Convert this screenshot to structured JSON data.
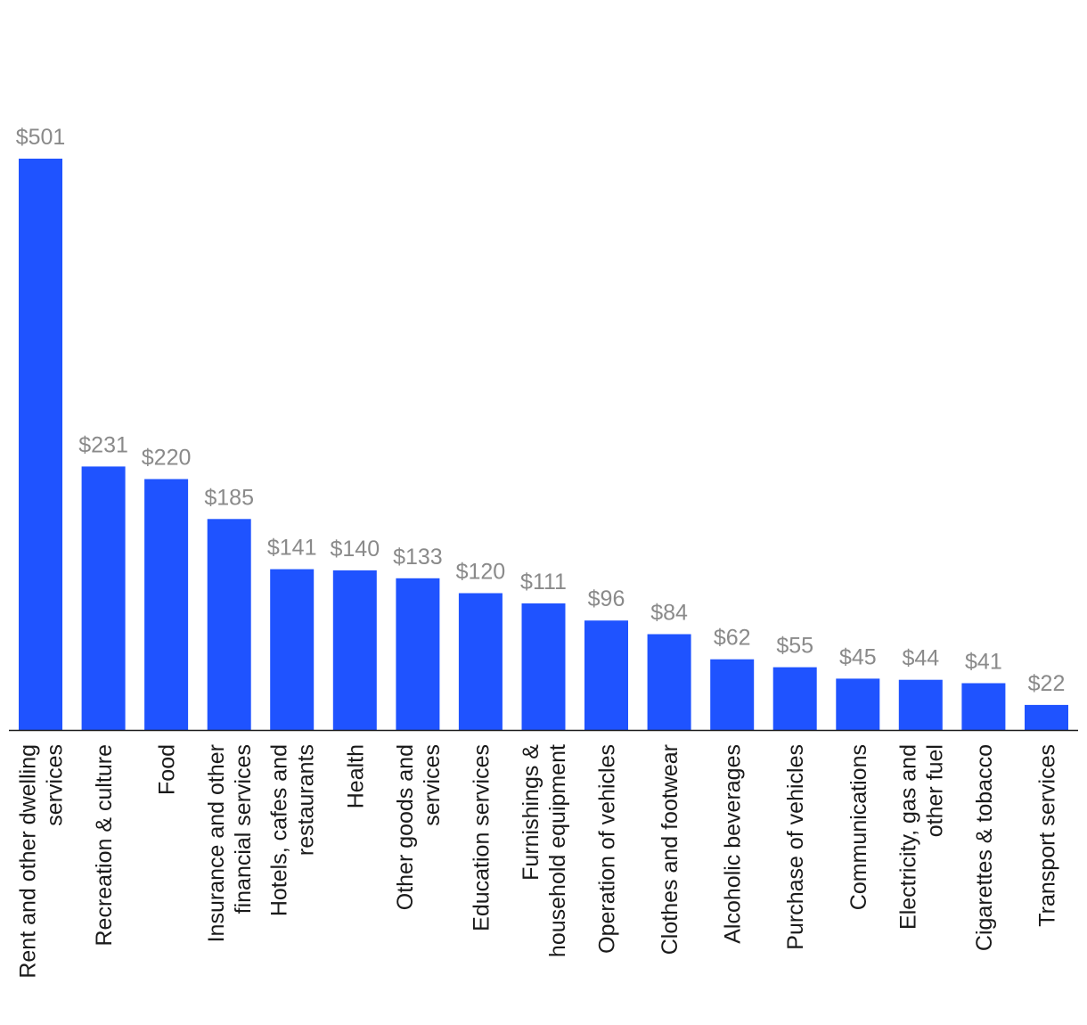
{
  "chart_data": {
    "type": "bar",
    "value_prefix": "$",
    "categories": [
      "Rent and other dwelling services",
      "Recreation & culture",
      "Food",
      "Insurance and other financial services",
      "Hotels, cafes and restaurants",
      "Health",
      "Other goods and services",
      "Education services",
      "Furnishings & household equipment",
      "Operation of vehicles",
      "Clothes and footwear",
      "Alcoholic beverages",
      "Purchase of vehicles",
      "Communications",
      "Electricity, gas and other fuel",
      "Cigarettes & tobacco",
      "Transport services"
    ],
    "label_lines": [
      [
        "Rent and other dwelling",
        "services"
      ],
      [
        "Recreation & culture"
      ],
      [
        "Food"
      ],
      [
        "Insurance and other",
        "financial services"
      ],
      [
        "Hotels, cafes and",
        "restaurants"
      ],
      [
        "Health"
      ],
      [
        "Other goods and",
        "services"
      ],
      [
        "Education services"
      ],
      [
        "Furnishings &",
        "household equipment"
      ],
      [
        "Operation of vehicles"
      ],
      [
        "Clothes and footwear"
      ],
      [
        "Alcoholic beverages"
      ],
      [
        "Purchase of vehicles"
      ],
      [
        "Communications"
      ],
      [
        "Electricity, gas and",
        "other fuel"
      ],
      [
        "Cigarettes & tobacco"
      ],
      [
        "Transport services"
      ]
    ],
    "values": [
      501,
      231,
      220,
      185,
      141,
      140,
      133,
      120,
      111,
      96,
      84,
      62,
      55,
      45,
      44,
      41,
      22
    ],
    "value_labels": [
      "$501",
      "$231",
      "$220",
      "$185",
      "$141",
      "$140",
      "$133",
      "$120",
      "$111",
      "$96",
      "$84",
      "$62",
      "$55",
      "$45",
      "$44",
      "$41",
      "$22"
    ],
    "title": "",
    "xlabel": "",
    "ylabel": "",
    "ylim": [
      0,
      501
    ],
    "grid": false,
    "legend": "none",
    "colors": {
      "bar": "#1f53ff",
      "value_label": "#8a8a8a",
      "category_label": "#1a1a1a",
      "axis": "#1a1a1a"
    }
  }
}
